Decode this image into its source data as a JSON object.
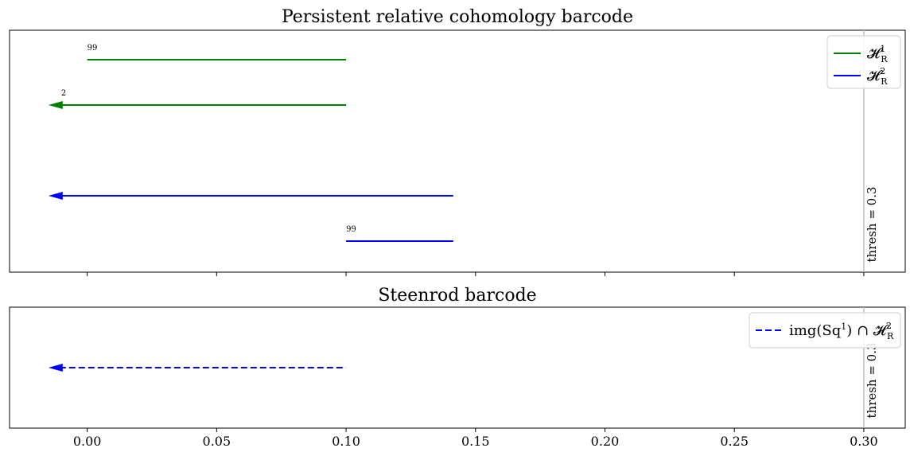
{
  "chart_data": [
    {
      "type": "barcode",
      "title": "Persistent relative cohomology barcode",
      "xlim": [
        -0.03,
        0.316
      ],
      "xticks": [
        0.0,
        0.05,
        0.1,
        0.15,
        0.2,
        0.25,
        0.3
      ],
      "show_xtick_labels": false,
      "threshold": {
        "value": 0.3,
        "label": "thresh = 0.3",
        "color": "#bfbfbf"
      },
      "legend": {
        "placement": "top-right",
        "entries": [
          {
            "label_base": "𝓗",
            "label_sub": "R",
            "label_sup": "1",
            "color": "#008000",
            "dash": "solid"
          },
          {
            "label_base": "𝓗",
            "label_sub": "R",
            "label_sup": "2",
            "color": "#0000ff",
            "dash": "solid"
          }
        ]
      },
      "bars": [
        {
          "series": "H1",
          "birth": 0.0,
          "death": 0.1,
          "infinite": false,
          "label": "99",
          "color": "#008000"
        },
        {
          "series": "H1",
          "birth": -0.015,
          "death": 0.1,
          "infinite": true,
          "label": "2",
          "color": "#008000"
        },
        {
          "series": "H2",
          "birth": -0.015,
          "death": 0.1414,
          "infinite": true,
          "label": "",
          "color": "#0000ff"
        },
        {
          "series": "H2",
          "birth": 0.1,
          "death": 0.1414,
          "infinite": false,
          "label": "99",
          "color": "#0000ff"
        }
      ]
    },
    {
      "type": "barcode",
      "title": "Steenrod barcode",
      "xlim": [
        -0.03,
        0.316
      ],
      "xticks": [
        0.0,
        0.05,
        0.1,
        0.15,
        0.2,
        0.25,
        0.3
      ],
      "xtick_labels": [
        "0.00",
        "0.05",
        "0.10",
        "0.15",
        "0.20",
        "0.25",
        "0.30"
      ],
      "show_xtick_labels": true,
      "threshold": {
        "value": 0.3,
        "label": "thresh = 0.3",
        "color": "#bfbfbf"
      },
      "legend": {
        "placement": "top-right",
        "entries": [
          {
            "label_prefix": "img(",
            "label_sq": "Sq",
            "label_sq_sup": "1",
            "label_mid": ") ∩ ",
            "label_base": "𝓗",
            "label_sub": "R",
            "label_sup": "2",
            "color": "#0000ff",
            "dash": "dashed"
          }
        ]
      },
      "bars": [
        {
          "series": "img",
          "birth": -0.015,
          "death": 0.1,
          "infinite": true,
          "label": "",
          "color": "#0000ff",
          "dash": "dashed"
        }
      ]
    }
  ]
}
